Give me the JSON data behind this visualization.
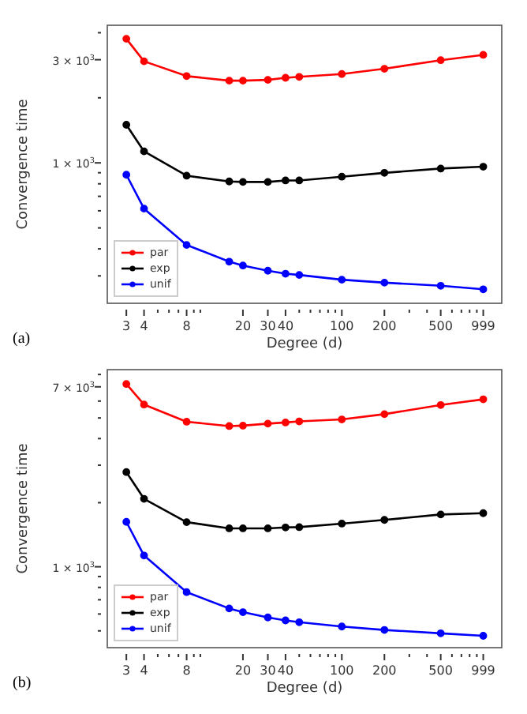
{
  "chart_data": [
    {
      "type": "line",
      "xlabel": "Degree (d)",
      "ylabel": "Convergence time",
      "log": "xy",
      "marker": "circle",
      "line_style": "solid",
      "legend": "bottom left",
      "grid": false,
      "annotations": [
        "(a)"
      ],
      "x": [
        3,
        4,
        8,
        16,
        20,
        30,
        40,
        50,
        100,
        200,
        500,
        999
      ],
      "xlim": [
        2.2,
        1350
      ],
      "ylim": [
        224,
        4330
      ],
      "xticks": [
        3,
        4,
        {
          "value": 5,
          "label": null
        },
        {
          "value": 6,
          "label": null
        },
        {
          "value": 7,
          "label": null
        },
        8,
        {
          "value": 9,
          "label": null
        },
        {
          "value": 10,
          "label": null
        },
        20,
        30,
        40,
        {
          "value": 50,
          "label": null
        },
        {
          "value": 60,
          "label": null
        },
        {
          "value": 70,
          "label": null
        },
        {
          "value": 80,
          "label": null
        },
        {
          "value": 90,
          "label": null
        },
        100,
        200,
        {
          "value": 300,
          "label": null
        },
        {
          "value": 400,
          "label": null
        },
        500,
        {
          "value": 600,
          "label": null
        },
        {
          "value": 700,
          "label": null
        },
        {
          "value": 800,
          "label": null
        },
        {
          "value": 900,
          "label": null
        },
        999
      ],
      "yticks": [
        {
          "value": 300,
          "label": null
        },
        {
          "value": 400,
          "label": null
        },
        {
          "value": 500,
          "label": null
        },
        {
          "value": 600,
          "label": null
        },
        {
          "value": 700,
          "label": null
        },
        {
          "value": 800,
          "label": null
        },
        {
          "value": 900,
          "label": null
        },
        {
          "value": 1000,
          "label": "1 × 10$^{3}$"
        },
        {
          "value": 2000,
          "label": null
        },
        {
          "value": 3000,
          "label": "3 × 10$^{3}$"
        },
        {
          "value": 4000,
          "label": null
        }
      ],
      "series": [
        {
          "name": "par",
          "color": "#ff0000",
          "values": [
            3750,
            2950,
            2520,
            2400,
            2400,
            2420,
            2475,
            2500,
            2575,
            2725,
            2985,
            3160
          ]
        },
        {
          "name": "exp",
          "color": "#000000",
          "values": [
            1500,
            1130,
            872,
            820,
            816,
            816,
            829,
            829,
            863,
            899,
            941,
            960
          ]
        },
        {
          "name": "unif",
          "color": "#0000ff",
          "values": [
            881,
            614,
            417,
            349,
            335,
            317,
            307,
            303,
            288,
            279,
            270,
            260
          ]
        }
      ]
    },
    {
      "type": "line",
      "xlabel": "Degree (d)",
      "ylabel": "Convergence time",
      "log": "xy",
      "marker": "circle",
      "line_style": "solid",
      "legend": "bottom left",
      "grid": false,
      "annotations": [
        "(b)"
      ],
      "x": [
        3,
        4,
        8,
        16,
        20,
        30,
        40,
        50,
        100,
        200,
        500,
        999
      ],
      "xlim": [
        2.2,
        1350
      ],
      "ylim": [
        417,
        8430
      ],
      "xticks": [
        3,
        4,
        {
          "value": 5,
          "label": null
        },
        {
          "value": 6,
          "label": null
        },
        {
          "value": 7,
          "label": null
        },
        8,
        {
          "value": 9,
          "label": null
        },
        {
          "value": 10,
          "label": null
        },
        20,
        30,
        40,
        {
          "value": 50,
          "label": null
        },
        {
          "value": 60,
          "label": null
        },
        {
          "value": 70,
          "label": null
        },
        {
          "value": 80,
          "label": null
        },
        {
          "value": 90,
          "label": null
        },
        100,
        200,
        {
          "value": 300,
          "label": null
        },
        {
          "value": 400,
          "label": null
        },
        500,
        {
          "value": 600,
          "label": null
        },
        {
          "value": 700,
          "label": null
        },
        {
          "value": 800,
          "label": null
        },
        {
          "value": 900,
          "label": null
        },
        999
      ],
      "yticks": [
        {
          "value": 500,
          "label": null
        },
        {
          "value": 600,
          "label": null
        },
        {
          "value": 700,
          "label": null
        },
        {
          "value": 800,
          "label": null
        },
        {
          "value": 900,
          "label": null
        },
        {
          "value": 1000,
          "label": "1 × 10$^{3}$"
        },
        {
          "value": 2000,
          "label": null
        },
        {
          "value": 3000,
          "label": null
        },
        {
          "value": 4000,
          "label": null
        },
        {
          "value": 5000,
          "label": null
        },
        {
          "value": 6000,
          "label": null
        },
        {
          "value": 7000,
          "label": "7 × 10$^{3}$"
        },
        {
          "value": 8000,
          "label": null
        }
      ],
      "series": [
        {
          "name": "par",
          "color": "#ff0000",
          "values": [
            7215,
            5780,
            4800,
            4580,
            4600,
            4700,
            4760,
            4815,
            4920,
            5210,
            5750,
            6115
          ]
        },
        {
          "name": "exp",
          "color": "#000000",
          "values": [
            2785,
            2085,
            1620,
            1515,
            1515,
            1515,
            1530,
            1535,
            1595,
            1660,
            1760,
            1785
          ]
        },
        {
          "name": "unif",
          "color": "#0000ff",
          "values": [
            1625,
            1130,
            760,
            637,
            612,
            578,
            560,
            549,
            524,
            505,
            487,
            474
          ]
        }
      ]
    }
  ]
}
